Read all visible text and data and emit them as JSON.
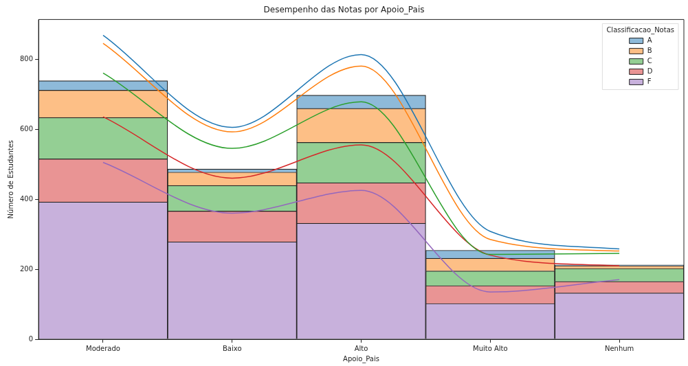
{
  "chart_data": {
    "type": "bar",
    "title": "Desempenho das Notas por Apoio_Pais",
    "xlabel": "Apoio_Pais",
    "ylabel": "Número de Estudantes",
    "legend_title": "Classificacao_Notas",
    "categories": [
      "Moderado",
      "Baixo",
      "Alto",
      "Muito Alto",
      "Nenhum"
    ],
    "stacked": true,
    "legend": "top right",
    "grid": false,
    "ylim": [
      0,
      913
    ],
    "yticks": [
      0,
      200,
      400,
      600,
      800
    ],
    "series": [
      {
        "name": "F",
        "color": "#c8b1dc",
        "values": [
          392,
          278,
          331,
          102,
          132
        ]
      },
      {
        "name": "D",
        "color": "#e99494",
        "values": [
          123,
          88,
          116,
          51,
          33
        ]
      },
      {
        "name": "C",
        "color": "#94cf94",
        "values": [
          118,
          73,
          115,
          42,
          37
        ]
      },
      {
        "name": "B",
        "color": "#fdbf86",
        "values": [
          78,
          38,
          97,
          36,
          8
        ]
      },
      {
        "name": "A",
        "color": "#8ebad9",
        "values": [
          27,
          9,
          38,
          23,
          2
        ]
      },
      {
        "type": "line",
        "color": "#1f77b4",
        "values": [
          868,
          605,
          813,
          308,
          258
        ]
      },
      {
        "type": "line",
        "color": "#ff7f0e",
        "values": [
          845,
          592,
          780,
          285,
          252
        ]
      },
      {
        "type": "line",
        "color": "#2ca02c",
        "values": [
          760,
          545,
          678,
          242,
          245
        ]
      },
      {
        "type": "line",
        "color": "#d62728",
        "values": [
          635,
          460,
          555,
          240,
          210
        ]
      },
      {
        "type": "line",
        "color": "#9467bd",
        "values": [
          505,
          360,
          425,
          135,
          170
        ]
      }
    ]
  }
}
